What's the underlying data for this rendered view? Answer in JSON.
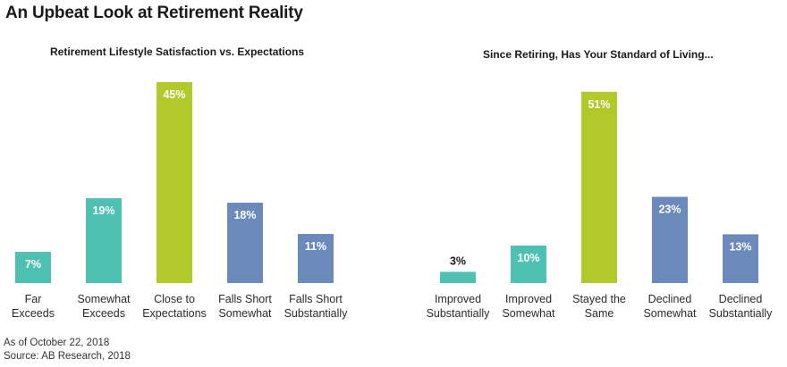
{
  "title": "An Upbeat Look at Retirement Reality",
  "colors": {
    "teal": "#4fc1b2",
    "green": "#b2c92b",
    "blue": "#6b8abb",
    "value_label_light": "#ffffff",
    "value_label_dark": "#1a1a1a"
  },
  "chart_data": [
    {
      "type": "bar",
      "title": "Retirement Lifestyle Satisfaction vs. Expectations",
      "categories": [
        [
          "Far",
          "Exceeds"
        ],
        [
          "Somewhat",
          "Exceeds"
        ],
        [
          "Close to",
          "Expectations"
        ],
        [
          "Falls Short",
          "Somewhat"
        ],
        [
          "Falls Short",
          "Substantially"
        ]
      ],
      "values": [
        7,
        19,
        45,
        18,
        11
      ],
      "value_labels": [
        "7%",
        "19%",
        "45%",
        "18%",
        "11%"
      ],
      "bar_colors": [
        "teal",
        "teal",
        "green",
        "blue",
        "blue"
      ],
      "ylim": [
        0,
        50
      ],
      "grid": false,
      "xlabel": "",
      "ylabel": ""
    },
    {
      "type": "bar",
      "title": "Since Retiring, Has Your Standard of Living...",
      "categories": [
        [
          "Improved",
          "Substantially"
        ],
        [
          "Improved",
          "Somewhat"
        ],
        [
          "Stayed the",
          "Same"
        ],
        [
          "Declined",
          "Somewhat"
        ],
        [
          "Declined",
          "Substantially"
        ]
      ],
      "values": [
        3,
        10,
        51,
        23,
        13
      ],
      "value_labels": [
        "3%",
        "10%",
        "51%",
        "23%",
        "13%"
      ],
      "bar_colors": [
        "teal",
        "teal",
        "green",
        "blue",
        "blue"
      ],
      "ylim": [
        0,
        55
      ],
      "grid": false,
      "xlabel": "",
      "ylabel": ""
    }
  ],
  "footnotes": {
    "date": "As of October 22, 2018",
    "source": "Source: AB Research, 2018"
  }
}
